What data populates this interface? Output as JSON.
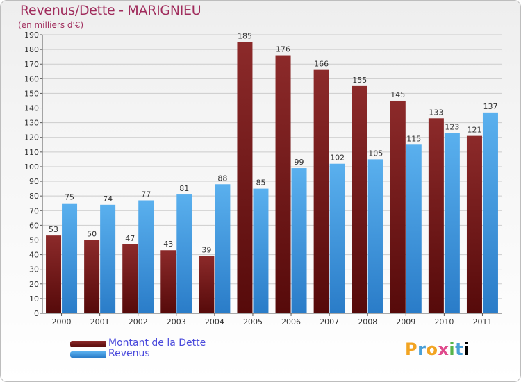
{
  "chart_data": {
    "type": "bar",
    "title": "Revenus/Dette - MARIGNIEU",
    "subtitle": "(en milliers d'€)",
    "categories": [
      "2000",
      "2001",
      "2002",
      "2003",
      "2004",
      "2005",
      "2006",
      "2007",
      "2008",
      "2009",
      "2010",
      "2011"
    ],
    "series": [
      {
        "name": "Montant de la Dette",
        "color": "#7a1f1f",
        "values": [
          53,
          50,
          47,
          43,
          39,
          185,
          176,
          166,
          155,
          145,
          133,
          121
        ]
      },
      {
        "name": "Revenus",
        "color": "#4aa3e6",
        "values": [
          75,
          74,
          77,
          81,
          88,
          85,
          99,
          102,
          105,
          115,
          123,
          137
        ]
      }
    ],
    "ylim": [
      0,
      190
    ],
    "yticks": [
      0,
      10,
      20,
      30,
      40,
      50,
      60,
      70,
      80,
      90,
      100,
      110,
      120,
      130,
      140,
      150,
      160,
      170,
      180,
      190
    ],
    "grid": true,
    "legend_position": "bottom-left"
  },
  "logo": {
    "text": "Proxiti",
    "letters": [
      "P",
      "r",
      "o",
      "x",
      "i",
      "t",
      "i"
    ]
  }
}
